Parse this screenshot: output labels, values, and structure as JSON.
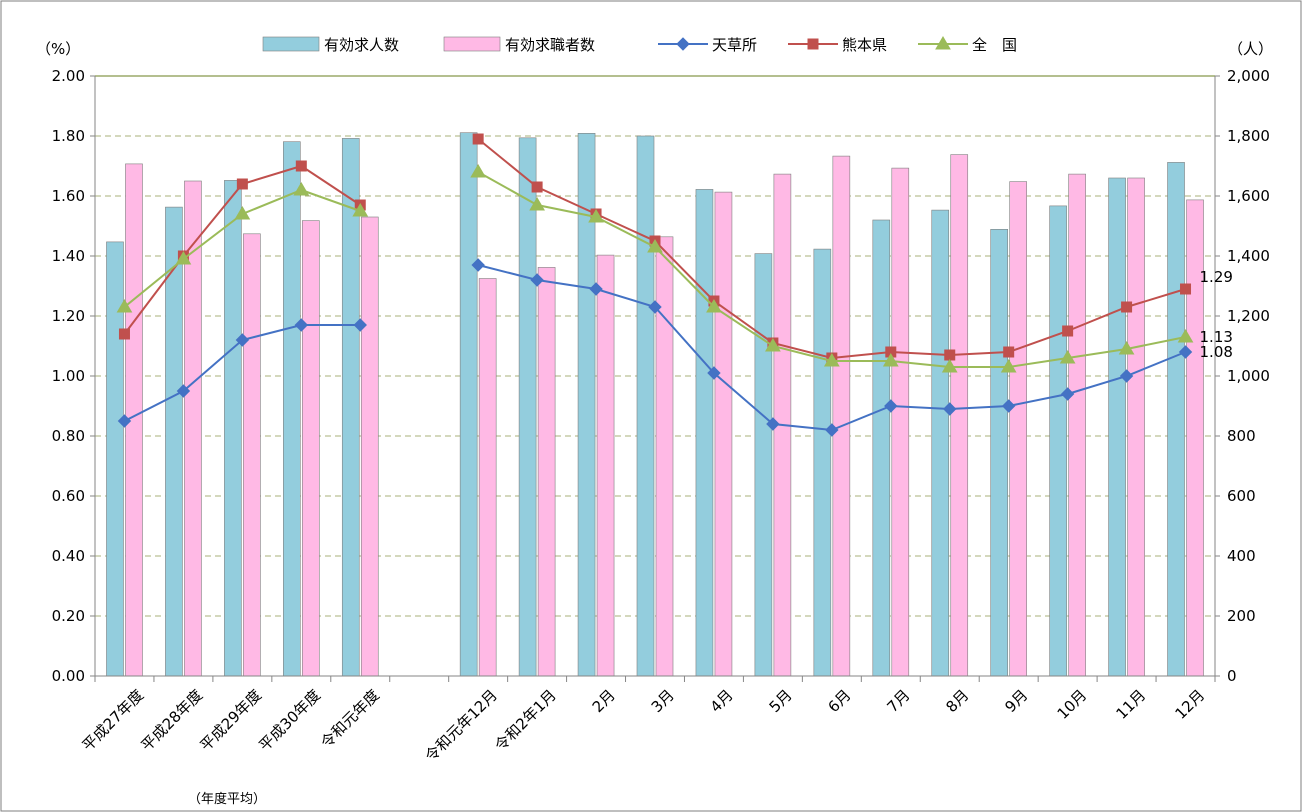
{
  "chart_data": {
    "type": "bar",
    "combo": "bar+line (dual axis)",
    "left_unit": "（%）",
    "right_unit": "（人）",
    "left_axis": {
      "min": 0,
      "max": 2.0,
      "ticks": [
        "0.00",
        "0.20",
        "0.40",
        "0.60",
        "0.80",
        "1.00",
        "1.20",
        "1.40",
        "1.60",
        "1.80",
        "2.00"
      ]
    },
    "right_axis": {
      "min": 0,
      "max": 2000,
      "ticks": [
        "0",
        "200",
        "400",
        "600",
        "800",
        "1,000",
        "1,200",
        "1,400",
        "1,600",
        "1,800",
        "2,000"
      ]
    },
    "categories": [
      "平成27年度",
      "平成28年度",
      "平成29年度",
      "平成30年度",
      "令和元年度",
      "",
      "令和元年12月",
      "令和2年1月",
      "2月",
      "3月",
      "4月",
      "5月",
      "6月",
      "7月",
      "8月",
      "9月",
      "10月",
      "11月",
      "12月"
    ],
    "category_note": "（年度平均）",
    "grid": "horizontal dashed",
    "legend_position": "top",
    "bar_series": [
      {
        "name": "有効求人数",
        "axis": "right",
        "color": "#93CDDD",
        "values": [
          1447,
          1563,
          1652,
          1781,
          1792,
          null,
          1811,
          1794,
          1809,
          1800,
          1622,
          1408,
          1423,
          1520,
          1553,
          1489,
          1567,
          1660,
          1712
        ]
      },
      {
        "name": "有効求職者数",
        "axis": "right",
        "color": "#FFB9E5",
        "values": [
          1707,
          1650,
          1474,
          1518,
          1530,
          null,
          1325,
          1362,
          1403,
          1464,
          1613,
          1673,
          1733,
          1693,
          1738,
          1648,
          1673,
          1660,
          1587
        ]
      }
    ],
    "line_series": [
      {
        "name": "天草所",
        "axis": "left",
        "color": "#4472C4",
        "marker": "diamond",
        "values": [
          0.85,
          0.95,
          1.12,
          1.17,
          1.17,
          null,
          1.37,
          1.32,
          1.29,
          1.23,
          1.01,
          0.84,
          0.82,
          0.9,
          0.89,
          0.9,
          0.94,
          1.0,
          1.08
        ]
      },
      {
        "name": "熊本県",
        "axis": "left",
        "color": "#C0504D",
        "marker": "square",
        "values": [
          1.14,
          1.4,
          1.64,
          1.7,
          1.57,
          null,
          1.79,
          1.63,
          1.54,
          1.45,
          1.25,
          1.11,
          1.06,
          1.08,
          1.07,
          1.08,
          1.15,
          1.23,
          1.29
        ]
      },
      {
        "name": "全　国",
        "axis": "left",
        "color": "#9BBB59",
        "marker": "triangle",
        "values": [
          1.23,
          1.39,
          1.54,
          1.62,
          1.55,
          null,
          1.68,
          1.57,
          1.53,
          1.43,
          1.23,
          1.1,
          1.05,
          1.05,
          1.03,
          1.03,
          1.06,
          1.09,
          1.13
        ]
      }
    ],
    "data_labels": [
      {
        "series": "熊本県",
        "text": "1.29"
      },
      {
        "series": "全　国",
        "text": "1.13"
      },
      {
        "series": "天草所",
        "text": "1.08"
      }
    ]
  }
}
